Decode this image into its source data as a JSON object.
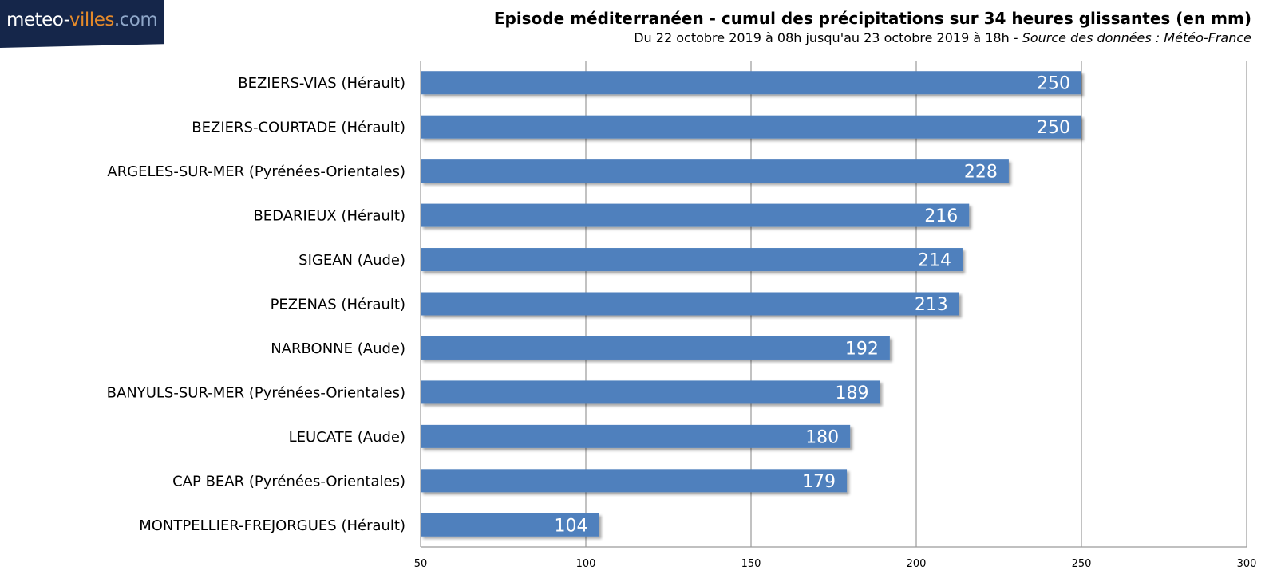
{
  "header": {
    "logo_part1": "meteo-",
    "logo_part2": "villes",
    "logo_part3": ".com",
    "title": "Episode méditerranéen - cumul des précipitations sur 34 heures glissantes (en mm)",
    "subtitle_period": "Du 22 octobre 2019 à 08h jusqu'au 23 octobre 2019 à 18h - ",
    "subtitle_source": "Source des données : Météo-France"
  },
  "colors": {
    "bar": "#4f80bd",
    "gridline": "#9a9a9a",
    "bar_label": "#ffffff",
    "logo_background": "#15264a",
    "logo_accent": "#e58a2a"
  },
  "chart_data": {
    "type": "bar",
    "orientation": "horizontal",
    "categories": [
      "BEZIERS-VIAS (Hérault)",
      "BEZIERS-COURTADE (Hérault)",
      "ARGELES-SUR-MER (Pyrénées-Orientales)",
      "BEDARIEUX (Hérault)",
      "SIGEAN (Aude)",
      "PEZENAS (Hérault)",
      "NARBONNE (Aude)",
      "BANYULS-SUR-MER (Pyrénées-Orientales)",
      "LEUCATE (Aude)",
      "CAP BEAR (Pyrénées-Orientales)",
      "MONTPELLIER-FREJORGUES (Hérault)"
    ],
    "values": [
      250,
      250,
      228,
      216,
      214,
      213,
      192,
      189,
      180,
      179,
      104
    ],
    "xlim": [
      50,
      300
    ],
    "xticks": [
      50,
      100,
      150,
      200,
      250,
      300
    ],
    "grid": true,
    "data_labels": true
  }
}
